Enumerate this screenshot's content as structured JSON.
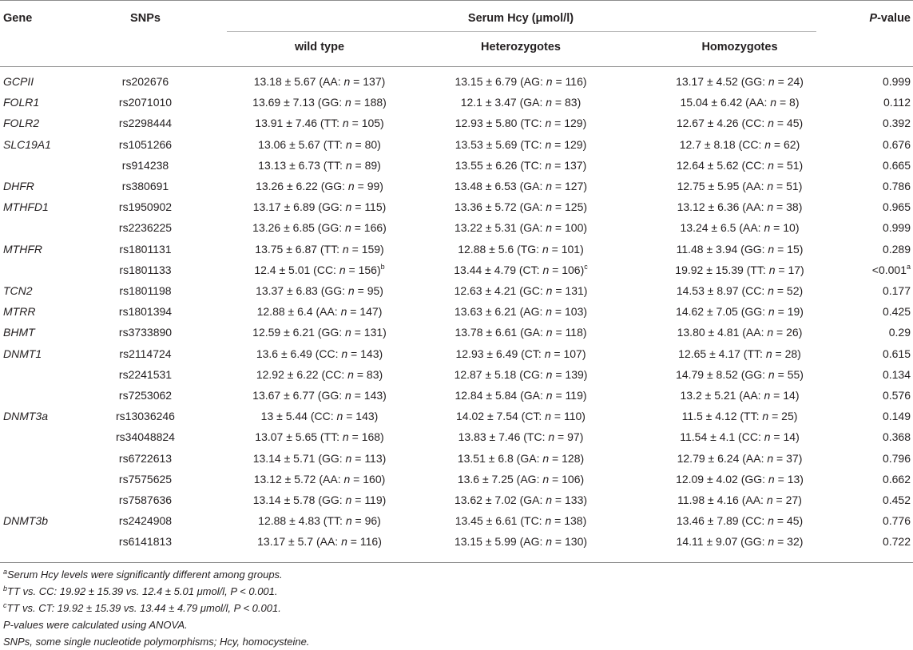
{
  "header": {
    "gene": "Gene",
    "snps": "SNPs",
    "group": "Serum Hcy (μmol/l)",
    "pvalue_italic": "P",
    "pvalue_rest": "-value",
    "wild_type": "wild type",
    "heterozygotes": "Heterozygotes",
    "homozygotes": "Homozygotes"
  },
  "rows": [
    {
      "gene": "GCPII",
      "snp": "rs202676",
      "wt": "13.18 ± 5.67 (AA: ",
      "wt_n": "137",
      "wt_sup": "",
      "het": "13.15 ± 6.79 (AG: ",
      "het_n": "116",
      "het_sup": "",
      "hom": "13.17 ± 4.52 (GG: ",
      "hom_n": "24",
      "p": "0.999",
      "p_sup": ""
    },
    {
      "gene": "FOLR1",
      "snp": "rs2071010",
      "wt": "13.69 ± 7.13 (GG: ",
      "wt_n": "188",
      "wt_sup": "",
      "het": "12.1 ± 3.47 (GA: ",
      "het_n": "83",
      "het_sup": "",
      "hom": "15.04 ± 6.42 (AA: ",
      "hom_n": "8",
      "p": "0.112",
      "p_sup": ""
    },
    {
      "gene": "FOLR2",
      "snp": "rs2298444",
      "wt": "13.91 ± 7.46 (TT: ",
      "wt_n": "105",
      "wt_sup": "",
      "het": "12.93 ± 5.80 (TC: ",
      "het_n": "129",
      "het_sup": "",
      "hom": "12.67 ± 4.26 (CC: ",
      "hom_n": "45",
      "p": "0.392",
      "p_sup": ""
    },
    {
      "gene": "SLC19A1",
      "snp": "rs1051266",
      "wt": "13.06 ± 5.67 (TT: ",
      "wt_n": "80",
      "wt_sup": "",
      "het": "13.53 ± 5.69 (TC: ",
      "het_n": "129",
      "het_sup": "",
      "hom": "12.7 ± 8.18 (CC: ",
      "hom_n": "62",
      "p": "0.676",
      "p_sup": ""
    },
    {
      "gene": "",
      "snp": "rs914238",
      "wt": "13.13 ± 6.73 (TT: ",
      "wt_n": "89",
      "wt_sup": "",
      "het": "13.55 ± 6.26 (TC: ",
      "het_n": "137",
      "het_sup": "",
      "hom": "12.64 ± 5.62 (CC: ",
      "hom_n": "51",
      "p": "0.665",
      "p_sup": ""
    },
    {
      "gene": "DHFR",
      "snp": "rs380691",
      "wt": "13.26 ± 6.22 (GG: ",
      "wt_n": "99",
      "wt_sup": "",
      "het": "13.48 ± 6.53 (GA: ",
      "het_n": "127",
      "het_sup": "",
      "hom": "12.75 ± 5.95 (AA: ",
      "hom_n": "51",
      "p": "0.786",
      "p_sup": ""
    },
    {
      "gene": "MTHFD1",
      "snp": "rs1950902",
      "wt": "13.17 ± 6.89 (GG: ",
      "wt_n": "115",
      "wt_sup": "",
      "het": "13.36 ± 5.72 (GA: ",
      "het_n": "125",
      "het_sup": "",
      "hom": "13.12 ± 6.36 (AA: ",
      "hom_n": "38",
      "p": "0.965",
      "p_sup": ""
    },
    {
      "gene": "",
      "snp": "rs2236225",
      "wt": "13.26 ± 6.85 (GG: ",
      "wt_n": "166",
      "wt_sup": "",
      "het": "13.22 ± 5.31 (GA: ",
      "het_n": "100",
      "het_sup": "",
      "hom": "13.24 ± 6.5 (AA: ",
      "hom_n": "10",
      "p": "0.999",
      "p_sup": ""
    },
    {
      "gene": "MTHFR",
      "snp": "rs1801131",
      "wt": "13.75 ± 6.87 (TT: ",
      "wt_n": "159",
      "wt_sup": "",
      "het": "12.88 ± 5.6 (TG: ",
      "het_n": "101",
      "het_sup": "",
      "hom": "11.48 ± 3.94 (GG: ",
      "hom_n": "15",
      "p": "0.289",
      "p_sup": ""
    },
    {
      "gene": "",
      "snp": "rs1801133",
      "wt": "12.4 ± 5.01 (CC: ",
      "wt_n": "156",
      "wt_sup": "b",
      "het": "13.44 ± 4.79 (CT: ",
      "het_n": "106",
      "het_sup": "c",
      "hom": "19.92 ± 15.39 (TT: ",
      "hom_n": "17",
      "p": "<0.001",
      "p_sup": "a"
    },
    {
      "gene": "TCN2",
      "snp": "rs1801198",
      "wt": "13.37 ± 6.83 (GG: ",
      "wt_n": "95",
      "wt_sup": "",
      "het": "12.63 ± 4.21 (GC: ",
      "het_n": "131",
      "het_sup": "",
      "hom": "14.53 ± 8.97 (CC: ",
      "hom_n": "52",
      "p": "0.177",
      "p_sup": ""
    },
    {
      "gene": "MTRR",
      "snp": "rs1801394",
      "wt": "12.88 ± 6.4 (AA: ",
      "wt_n": "147",
      "wt_sup": "",
      "het": "13.63 ± 6.21 (AG: ",
      "het_n": "103",
      "het_sup": "",
      "hom": "14.62 ± 7.05 (GG: ",
      "hom_n": "19",
      "p": "0.425",
      "p_sup": ""
    },
    {
      "gene": "BHMT",
      "snp": "rs3733890",
      "wt": "12.59 ± 6.21 (GG: ",
      "wt_n": "131",
      "wt_sup": "",
      "het": "13.78 ± 6.61 (GA: ",
      "het_n": "118",
      "het_sup": "",
      "hom": "13.80 ± 4.81 (AA: ",
      "hom_n": "26",
      "p": "0.29",
      "p_sup": ""
    },
    {
      "gene": "DNMT1",
      "snp": "rs2114724",
      "wt": "13.6 ± 6.49 (CC: ",
      "wt_n": "143",
      "wt_sup": "",
      "het": "12.93 ± 6.49 (CT: ",
      "het_n": "107",
      "het_sup": "",
      "hom": "12.65 ± 4.17 (TT: ",
      "hom_n": "28",
      "p": "0.615",
      "p_sup": ""
    },
    {
      "gene": "",
      "snp": "rs2241531",
      "wt": "12.92 ± 6.22 (CC: ",
      "wt_n": "83",
      "wt_sup": "",
      "het": "12.87 ± 5.18 (CG: ",
      "het_n": "139",
      "het_sup": "",
      "hom": "14.79 ± 8.52 (GG: ",
      "hom_n": "55",
      "p": "0.134",
      "p_sup": ""
    },
    {
      "gene": "",
      "snp": "rs7253062",
      "wt": "13.67 ± 6.77 (GG: ",
      "wt_n": "143",
      "wt_sup": "",
      "het": "12.84 ± 5.84 (GA: ",
      "het_n": "119",
      "het_sup": "",
      "hom": "13.2 ± 5.21 (AA: ",
      "hom_n": "14",
      "p": "0.576",
      "p_sup": ""
    },
    {
      "gene": "DNMT3a",
      "snp": "rs13036246",
      "wt": "13 ± 5.44 (CC: ",
      "wt_n": "143",
      "wt_sup": "",
      "het": "14.02 ± 7.54 (CT: ",
      "het_n": "110",
      "het_sup": "",
      "hom": "11.5 ± 4.12 (TT: ",
      "hom_n": "25",
      "p": "0.149",
      "p_sup": ""
    },
    {
      "gene": "",
      "snp": "rs34048824",
      "wt": "13.07 ± 5.65 (TT: ",
      "wt_n": "168",
      "wt_sup": "",
      "het": "13.83 ± 7.46 (TC: ",
      "het_n": "97",
      "het_sup": "",
      "hom": "11.54 ± 4.1 (CC: ",
      "hom_n": "14",
      "p": "0.368",
      "p_sup": ""
    },
    {
      "gene": "",
      "snp": "rs6722613",
      "wt": "13.14 ± 5.71 (GG: ",
      "wt_n": "113",
      "wt_sup": "",
      "het": "13.51 ± 6.8 (GA: ",
      "het_n": "128",
      "het_sup": "",
      "hom": "12.79 ± 6.24 (AA: ",
      "hom_n": "37",
      "p": "0.796",
      "p_sup": ""
    },
    {
      "gene": "",
      "snp": "rs7575625",
      "wt": "13.12 ± 5.72 (AA: ",
      "wt_n": "160",
      "wt_sup": "",
      "het": "13.6 ± 7.25 (AG: ",
      "het_n": "106",
      "het_sup": "",
      "hom": "12.09 ± 4.02 (GG: ",
      "hom_n": "13",
      "p": "0.662",
      "p_sup": ""
    },
    {
      "gene": "",
      "snp": "rs7587636",
      "wt": "13.14 ± 5.78 (GG: ",
      "wt_n": "119",
      "wt_sup": "",
      "het": "13.62 ± 7.02 (GA: ",
      "het_n": "133",
      "het_sup": "",
      "hom": "11.98 ± 4.16 (AA: ",
      "hom_n": "27",
      "p": "0.452",
      "p_sup": ""
    },
    {
      "gene": "DNMT3b",
      "snp": "rs2424908",
      "wt": "12.88 ± 4.83 (TT: ",
      "wt_n": "96",
      "wt_sup": "",
      "het": "13.45 ± 6.61 (TC: ",
      "het_n": "138",
      "het_sup": "",
      "hom": "13.46 ± 7.89 (CC: ",
      "hom_n": "45",
      "p": "0.776",
      "p_sup": ""
    },
    {
      "gene": "",
      "snp": "rs6141813",
      "wt": "13.17 ± 5.7 (AA: ",
      "wt_n": "116",
      "wt_sup": "",
      "het": "13.15 ± 5.99 (AG: ",
      "het_n": "130",
      "het_sup": "",
      "hom": "14.11 ± 9.07 (GG: ",
      "hom_n": "32",
      "p": "0.722",
      "p_sup": ""
    }
  ],
  "n_label": "n",
  "n_sep": " = ",
  "close_paren": ")",
  "footnotes": [
    {
      "sup": "a",
      "text": "Serum Hcy levels were significantly different among groups."
    },
    {
      "sup": "b",
      "text": "TT vs. CC: 19.92 ± 15.39 vs. 12.4 ± 5.01 μmol/l, P < 0.001."
    },
    {
      "sup": "c",
      "text": "TT vs. CT: 19.92 ± 15.39 vs. 13.44 ± 4.79 μmol/l, P < 0.001."
    },
    {
      "sup": "",
      "text": "P-values were calculated using ANOVA."
    },
    {
      "sup": "",
      "text": "SNPs, some single nucleotide polymorphisms; Hcy, homocysteine."
    }
  ]
}
